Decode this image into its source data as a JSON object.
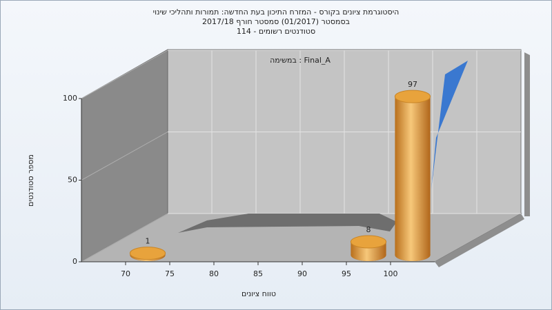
{
  "chart_data": {
    "type": "histogram",
    "title_lines": [
      "היסטוגרמת ציונים בקורס - המזרח התיכון בעת החדשה: תמורות ותהליכי שינוי",
      "בסמסטר  (01/2017)  סמסטר חורף  2017/18",
      "סטודנטים רשומים - 114"
    ],
    "annotation": "במשימה : Final_A",
    "xlabel": "טווח ציונים",
    "ylabel": "מספר סטודנטים",
    "bins": [
      70,
      75,
      80,
      85,
      90,
      95,
      100,
      105
    ],
    "values": [
      1,
      0,
      0,
      0,
      0,
      8,
      97
    ],
    "color": "#e8a33c",
    "xlim": [
      65,
      105
    ],
    "xticks": [
      70,
      75,
      80,
      85,
      90,
      95,
      100
    ],
    "ylim": [
      0,
      100
    ],
    "yticks": [
      0,
      50,
      100
    ],
    "grid": true
  }
}
